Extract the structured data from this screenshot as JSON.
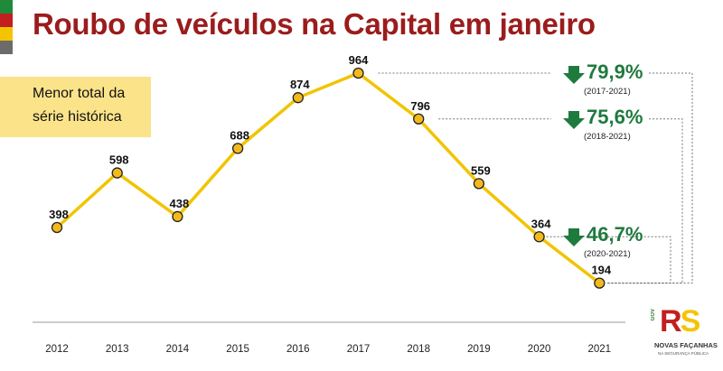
{
  "title": "Roubo de veículos na Capital em janeiro",
  "note": {
    "line1": "Menor total da",
    "line2": "série histórica"
  },
  "colors": {
    "title": "#9b1c1c",
    "line": "#f2c400",
    "point_fill": "#f3b91b",
    "decrease": "#1f7a3e",
    "note_bg": "#fbe38a",
    "flag": [
      "#1f8a3a",
      "#c21f1f",
      "#f5c400",
      "#6b6b6b"
    ]
  },
  "changes": [
    {
      "pct": "79,9%",
      "period": "(2017-2021)",
      "icon": "arrow-down-icon"
    },
    {
      "pct": "75,6%",
      "period": "(2018-2021)",
      "icon": "arrow-down-icon"
    },
    {
      "pct": "46,7%",
      "period": "(2020-2021)",
      "icon": "arrow-down-icon"
    }
  ],
  "logo": {
    "letters": "RS",
    "gov": "GOV",
    "name": "NOVAS FAÇANHAS",
    "sub": "NA SEGURANÇA PÚBLICA"
  },
  "chart_data": {
    "type": "line",
    "categories": [
      "2012",
      "2013",
      "2014",
      "2015",
      "2016",
      "2017",
      "2018",
      "2019",
      "2020",
      "2021"
    ],
    "values": [
      398,
      598,
      438,
      688,
      874,
      964,
      796,
      559,
      364,
      194
    ],
    "grid": false,
    "legend": "none"
  }
}
